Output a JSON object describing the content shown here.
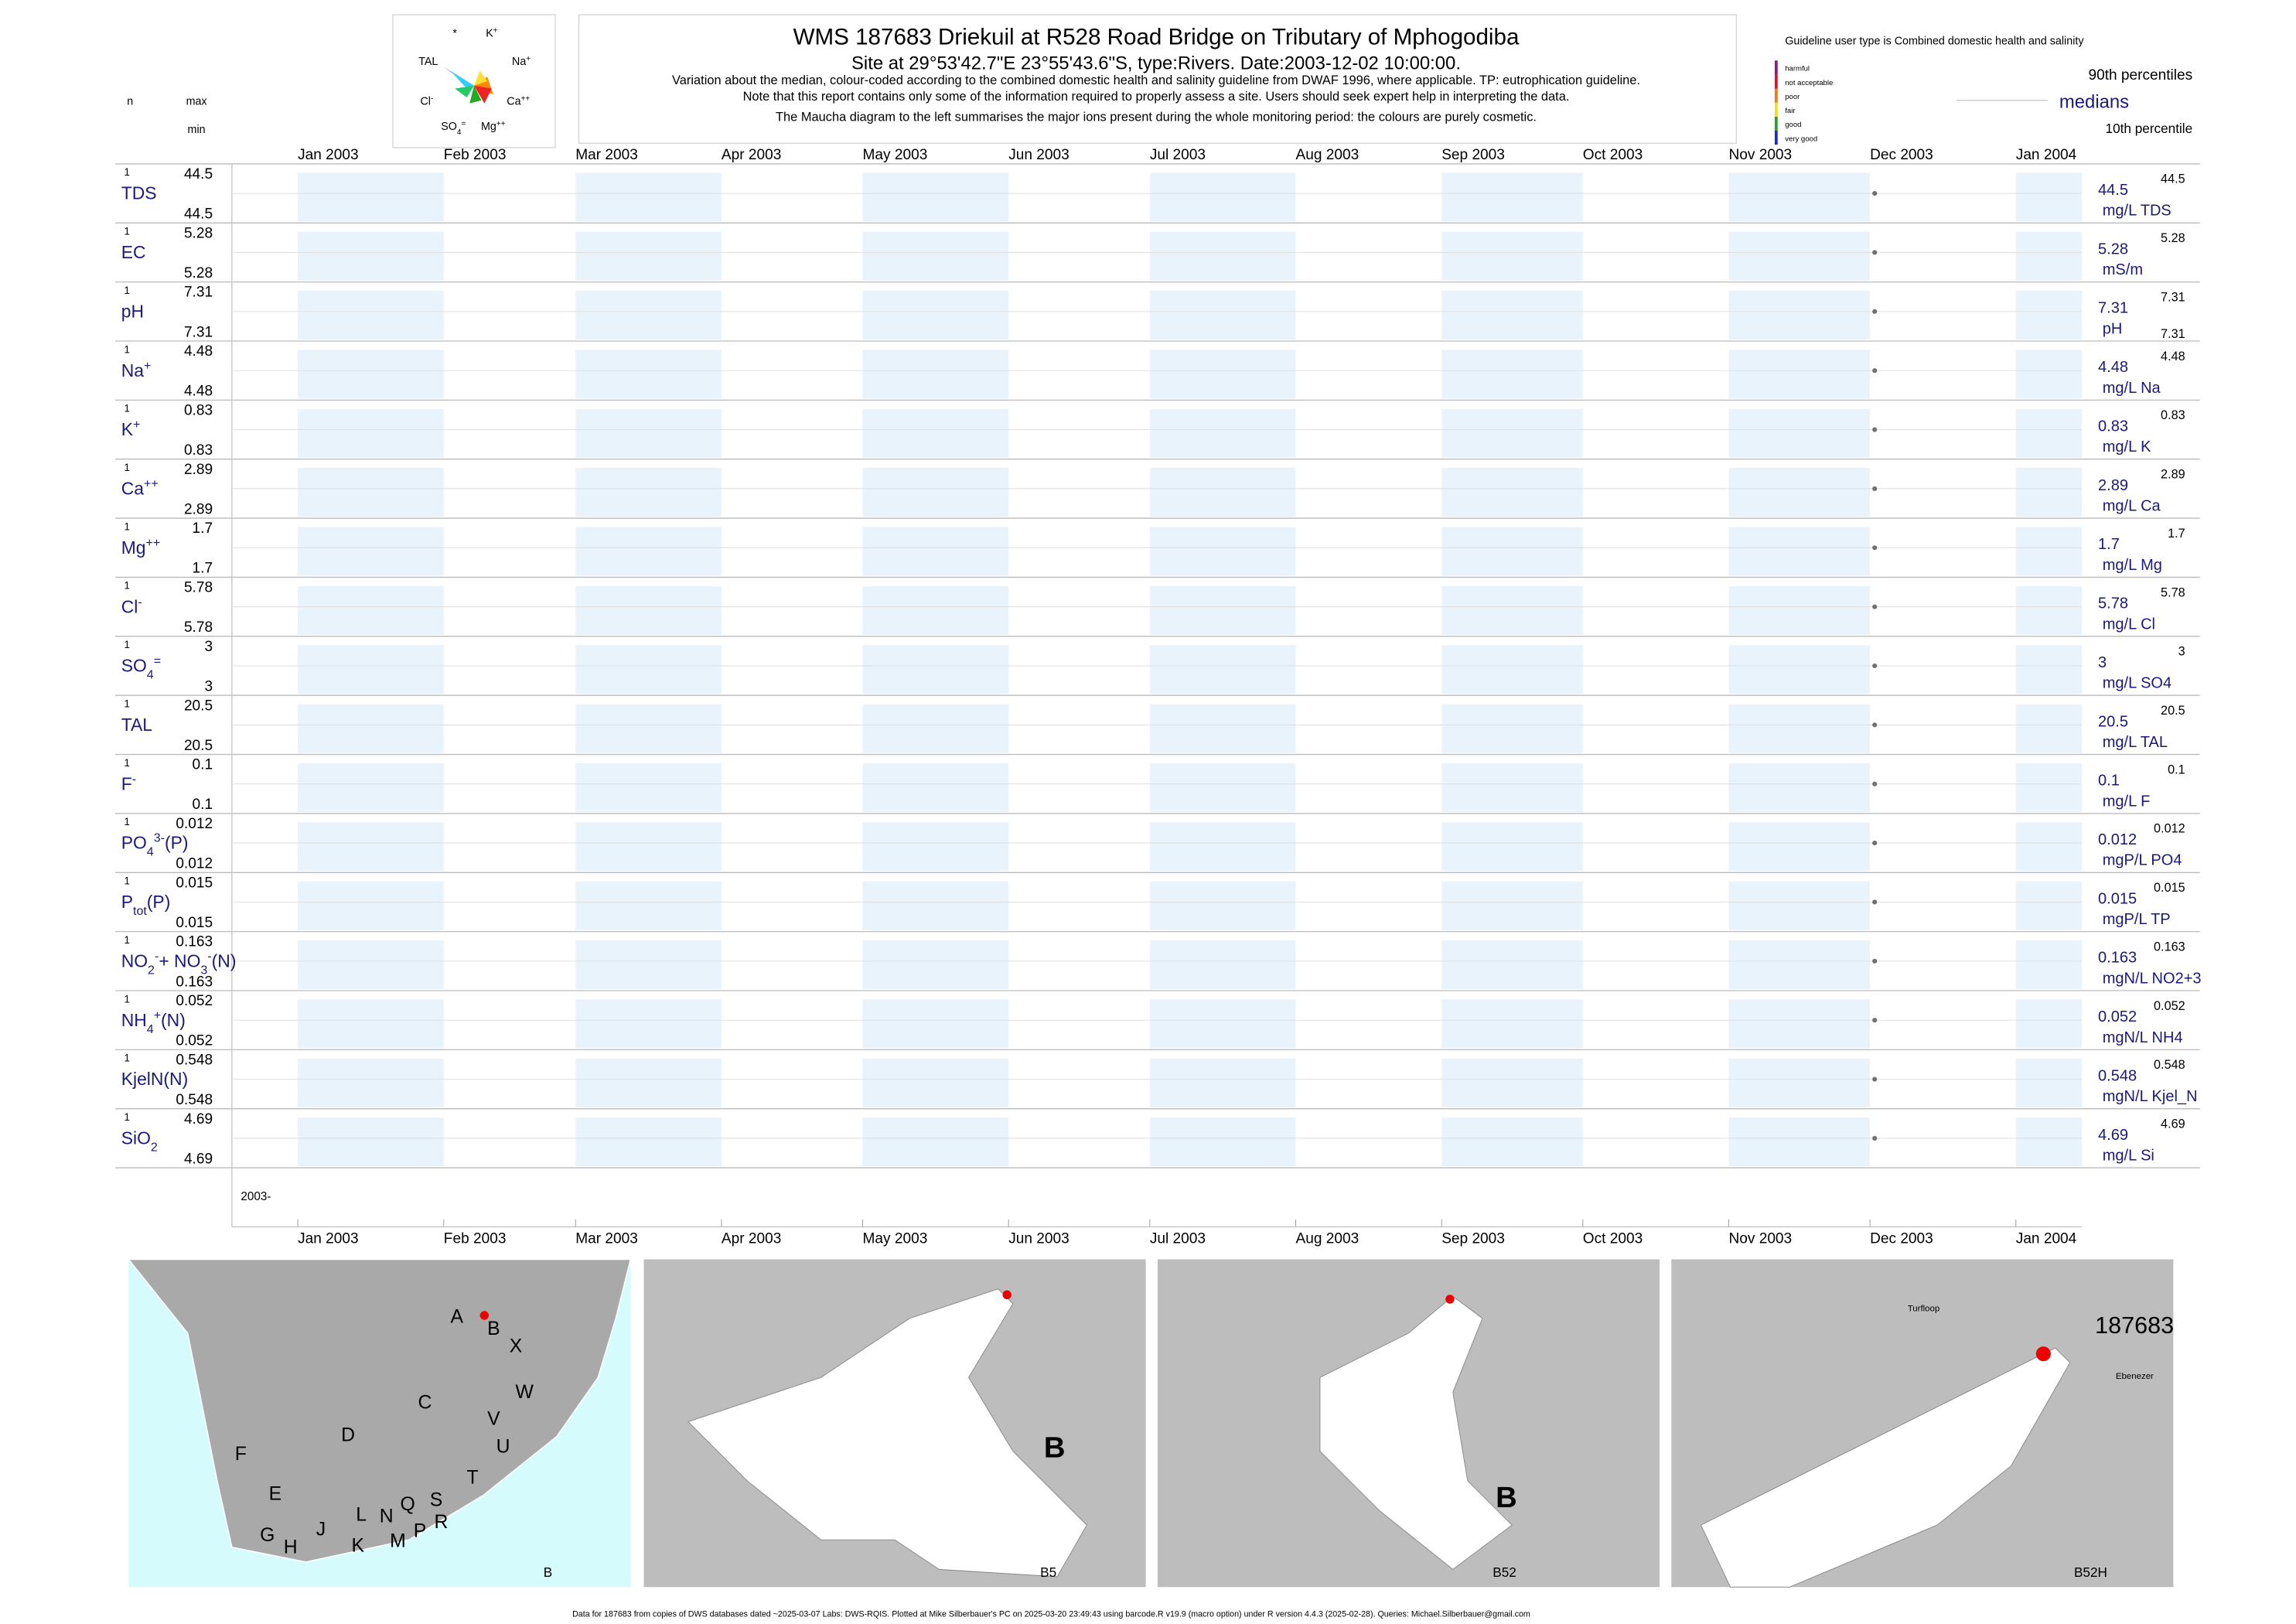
{
  "header": {
    "title": "WMS 187683  Driekuil at R528 Road Bridge on Tributary of Mphogodiba",
    "subtitle": "Site at 29°53'42.7\"E 23°55'43.6\"S, type:Rivers. Date:2003-12-02 10:00:00.",
    "notes": [
      "Variation about the median,  colour-coded according to the combined domestic health and salinity guideline from DWAF 1996, where applicable. TP: eutrophication guideline.",
      "Note that this report contains only some of the information required to properly assess a site. Users should seek expert help in interpreting the data.",
      "The Maucha diagram to the left summarises the major ions present during the whole monitoring period: the colours are purely cosmetic."
    ]
  },
  "maucha": {
    "labels": [
      [
        {
          "text": "*"
        }
      ],
      [
        {
          "text": "K"
        },
        {
          "text": "+",
          "sup": true
        }
      ],
      [
        {
          "text": "TAL"
        }
      ],
      [
        {
          "text": "Na"
        },
        {
          "text": "+",
          "sup": true
        }
      ],
      [
        {
          "text": "Cl"
        },
        {
          "text": "-",
          "sup": true
        }
      ],
      [
        {
          "text": "Ca"
        },
        {
          "text": "++",
          "sup": true
        }
      ],
      [
        {
          "text": "SO"
        },
        {
          "text": "4",
          "sub": true
        },
        {
          "text": "=",
          "sup": true
        }
      ],
      [
        {
          "text": "Mg"
        },
        {
          "text": "++",
          "sup": true
        }
      ]
    ]
  },
  "guideline": {
    "title": "Guideline user type is Combined domestic health and salinity",
    "levels": [
      {
        "label": "harmful",
        "color": "#8b1a8b"
      },
      {
        "label": "not acceptable",
        "color": "#e0102a"
      },
      {
        "label": "poor",
        "color": "#f07818"
      },
      {
        "label": "fair",
        "color": "#f2e01a"
      },
      {
        "label": "good",
        "color": "#2aa02a"
      },
      {
        "label": "very good",
        "color": "#1a2ad0"
      }
    ],
    "p90": "90th percentiles",
    "medians": "medians",
    "p10": "10th percentile"
  },
  "column_heads": {
    "n": "n",
    "max": "max",
    "min": "min"
  },
  "chart_data": {
    "type": "strip",
    "x": [
      "2003-12-02"
    ],
    "xlim": [
      "2002-12-18",
      "2004-01-15"
    ],
    "xticks": [
      {
        "value": "2003-01-01",
        "label": "Jan 2003"
      },
      {
        "value": "2003-02-01",
        "label": "Feb 2003"
      },
      {
        "value": "2003-03-01",
        "label": "Mar 2003"
      },
      {
        "value": "2003-04-01",
        "label": "Apr 2003"
      },
      {
        "value": "2003-05-01",
        "label": "May 2003"
      },
      {
        "value": "2003-06-01",
        "label": "Jun 2003"
      },
      {
        "value": "2003-07-01",
        "label": "Jul 2003"
      },
      {
        "value": "2003-08-01",
        "label": "Aug 2003"
      },
      {
        "value": "2003-09-01",
        "label": "Sep 2003"
      },
      {
        "value": "2003-10-01",
        "label": "Oct 2003"
      },
      {
        "value": "2003-11-01",
        "label": "Nov 2003"
      },
      {
        "value": "2003-12-01",
        "label": "Dec 2003"
      },
      {
        "value": "2004-01-01",
        "label": "Jan 2004"
      }
    ],
    "year_label": "2003-",
    "point_color": "#707070",
    "band_color": "#e8f3fc",
    "panels": [
      {
        "name": [
          {
            "text": "TDS"
          }
        ],
        "n": 1,
        "max": 44.5,
        "min": 44.5,
        "values": [
          44.5
        ],
        "median": 44.5,
        "p90": 44.5,
        "unit": "mg/L TDS"
      },
      {
        "name": [
          {
            "text": "EC"
          }
        ],
        "n": 1,
        "max": 5.28,
        "min": 5.28,
        "values": [
          5.28
        ],
        "median": 5.28,
        "p90": 5.28,
        "unit": "mS/m"
      },
      {
        "name": [
          {
            "text": "pH"
          }
        ],
        "n": 1,
        "max": 7.31,
        "min": 7.31,
        "values": [
          7.31
        ],
        "median": 7.31,
        "p90": 7.31,
        "p10": 7.31,
        "unit": "pH"
      },
      {
        "name": [
          {
            "text": "Na"
          },
          {
            "text": "+",
            "sup": true
          }
        ],
        "n": 1,
        "max": 4.48,
        "min": 4.48,
        "values": [
          4.48
        ],
        "median": 4.48,
        "p90": 4.48,
        "unit": "mg/L Na"
      },
      {
        "name": [
          {
            "text": "K"
          },
          {
            "text": "+",
            "sup": true
          }
        ],
        "n": 1,
        "max": 0.83,
        "min": 0.83,
        "values": [
          0.83
        ],
        "median": 0.83,
        "p90": 0.83,
        "unit": "mg/L K"
      },
      {
        "name": [
          {
            "text": "Ca"
          },
          {
            "text": "++",
            "sup": true
          }
        ],
        "n": 1,
        "max": 2.89,
        "min": 2.89,
        "values": [
          2.89
        ],
        "median": 2.89,
        "p90": 2.89,
        "unit": "mg/L Ca"
      },
      {
        "name": [
          {
            "text": "Mg"
          },
          {
            "text": "++",
            "sup": true
          }
        ],
        "n": 1,
        "max": 1.7,
        "min": 1.7,
        "values": [
          1.7
        ],
        "median": 1.7,
        "p90": 1.7,
        "unit": "mg/L Mg"
      },
      {
        "name": [
          {
            "text": "Cl"
          },
          {
            "text": "-",
            "sup": true
          }
        ],
        "n": 1,
        "max": 5.78,
        "min": 5.78,
        "values": [
          5.78
        ],
        "median": 5.78,
        "p90": 5.78,
        "unit": "mg/L Cl"
      },
      {
        "name": [
          {
            "text": "SO"
          },
          {
            "text": "4",
            "sub": true
          },
          {
            "text": "=",
            "sup": true
          }
        ],
        "n": 1,
        "max": 3,
        "min": 3,
        "values": [
          3
        ],
        "median": 3,
        "p90": 3,
        "unit": "mg/L SO4"
      },
      {
        "name": [
          {
            "text": "TAL"
          }
        ],
        "n": 1,
        "max": 20.5,
        "min": 20.5,
        "values": [
          20.5
        ],
        "median": 20.5,
        "p90": 20.5,
        "unit": "mg/L TAL"
      },
      {
        "name": [
          {
            "text": "F"
          },
          {
            "text": "-",
            "sup": true
          }
        ],
        "n": 1,
        "max": 0.1,
        "min": 0.1,
        "values": [
          0.1
        ],
        "median": 0.1,
        "p90": 0.1,
        "unit": "mg/L F"
      },
      {
        "name": [
          {
            "text": "PO"
          },
          {
            "text": "4",
            "sub": true
          },
          {
            "text": "3-",
            "sup": true
          },
          {
            "text": "(P)"
          }
        ],
        "n": 1,
        "max": 0.012,
        "min": 0.012,
        "values": [
          0.012
        ],
        "median": 0.012,
        "p90": 0.012,
        "unit": "mgP/L PO4"
      },
      {
        "name": [
          {
            "text": "P"
          },
          {
            "text": "tot",
            "sub": true
          },
          {
            "text": "(P)"
          }
        ],
        "n": 1,
        "max": 0.015,
        "min": 0.015,
        "values": [
          0.015
        ],
        "median": 0.015,
        "p90": 0.015,
        "unit": "mgP/L TP"
      },
      {
        "name": [
          {
            "text": "NO"
          },
          {
            "text": "2",
            "sub": true
          },
          {
            "text": "-",
            "sup": true
          },
          {
            "text": "+ NO"
          },
          {
            "text": "3",
            "sub": true
          },
          {
            "text": "-",
            "sup": true
          },
          {
            "text": "(N)"
          }
        ],
        "n": 1,
        "max": 0.163,
        "min": 0.163,
        "values": [
          0.163
        ],
        "median": 0.163,
        "p90": 0.163,
        "unit": "mgN/L NO2+3"
      },
      {
        "name": [
          {
            "text": "NH"
          },
          {
            "text": "4",
            "sub": true
          },
          {
            "text": "+",
            "sup": true
          },
          {
            "text": "(N)"
          }
        ],
        "n": 1,
        "max": 0.052,
        "min": 0.052,
        "values": [
          0.052
        ],
        "median": 0.052,
        "p90": 0.052,
        "unit": "mgN/L NH4"
      },
      {
        "name": [
          {
            "text": "KjelN(N)"
          }
        ],
        "n": 1,
        "max": 0.548,
        "min": 0.548,
        "values": [
          0.548
        ],
        "median": 0.548,
        "p90": 0.548,
        "unit": "mgN/L Kjel_N"
      },
      {
        "name": [
          {
            "text": "SiO"
          },
          {
            "text": "2",
            "sub": true
          }
        ],
        "n": 1,
        "max": 4.69,
        "min": 4.69,
        "values": [
          4.69
        ],
        "median": 4.69,
        "p90": 4.69,
        "unit": "mg/L Si"
      }
    ]
  },
  "maps": [
    {
      "label": "B",
      "letters": [
        "A",
        "B",
        "X",
        "C",
        "W",
        "D",
        "V",
        "U",
        "F",
        "T",
        "E",
        "G",
        "H",
        "J",
        "K",
        "L",
        "N",
        "M",
        "Q",
        "P",
        "S",
        "R"
      ]
    },
    {
      "label": "B5",
      "letters": [
        "B"
      ]
    },
    {
      "label": "B52",
      "letters": [
        "B"
      ]
    },
    {
      "label": "B52H",
      "letters": [
        "187683",
        "Turfloop",
        "Ebenezer"
      ]
    }
  ],
  "footer": "Data for 187683 from copies of DWS databases dated ~2025-03-07 Labs: DWS-RQIS. Plotted at Mike Silberbauer's PC on 2025-03-20 23:49:43 using barcode.R v19.9 (macro option) under R version 4.4.3 (2025-02-28). Queries: Michael.Silberbauer@gmail.com"
}
